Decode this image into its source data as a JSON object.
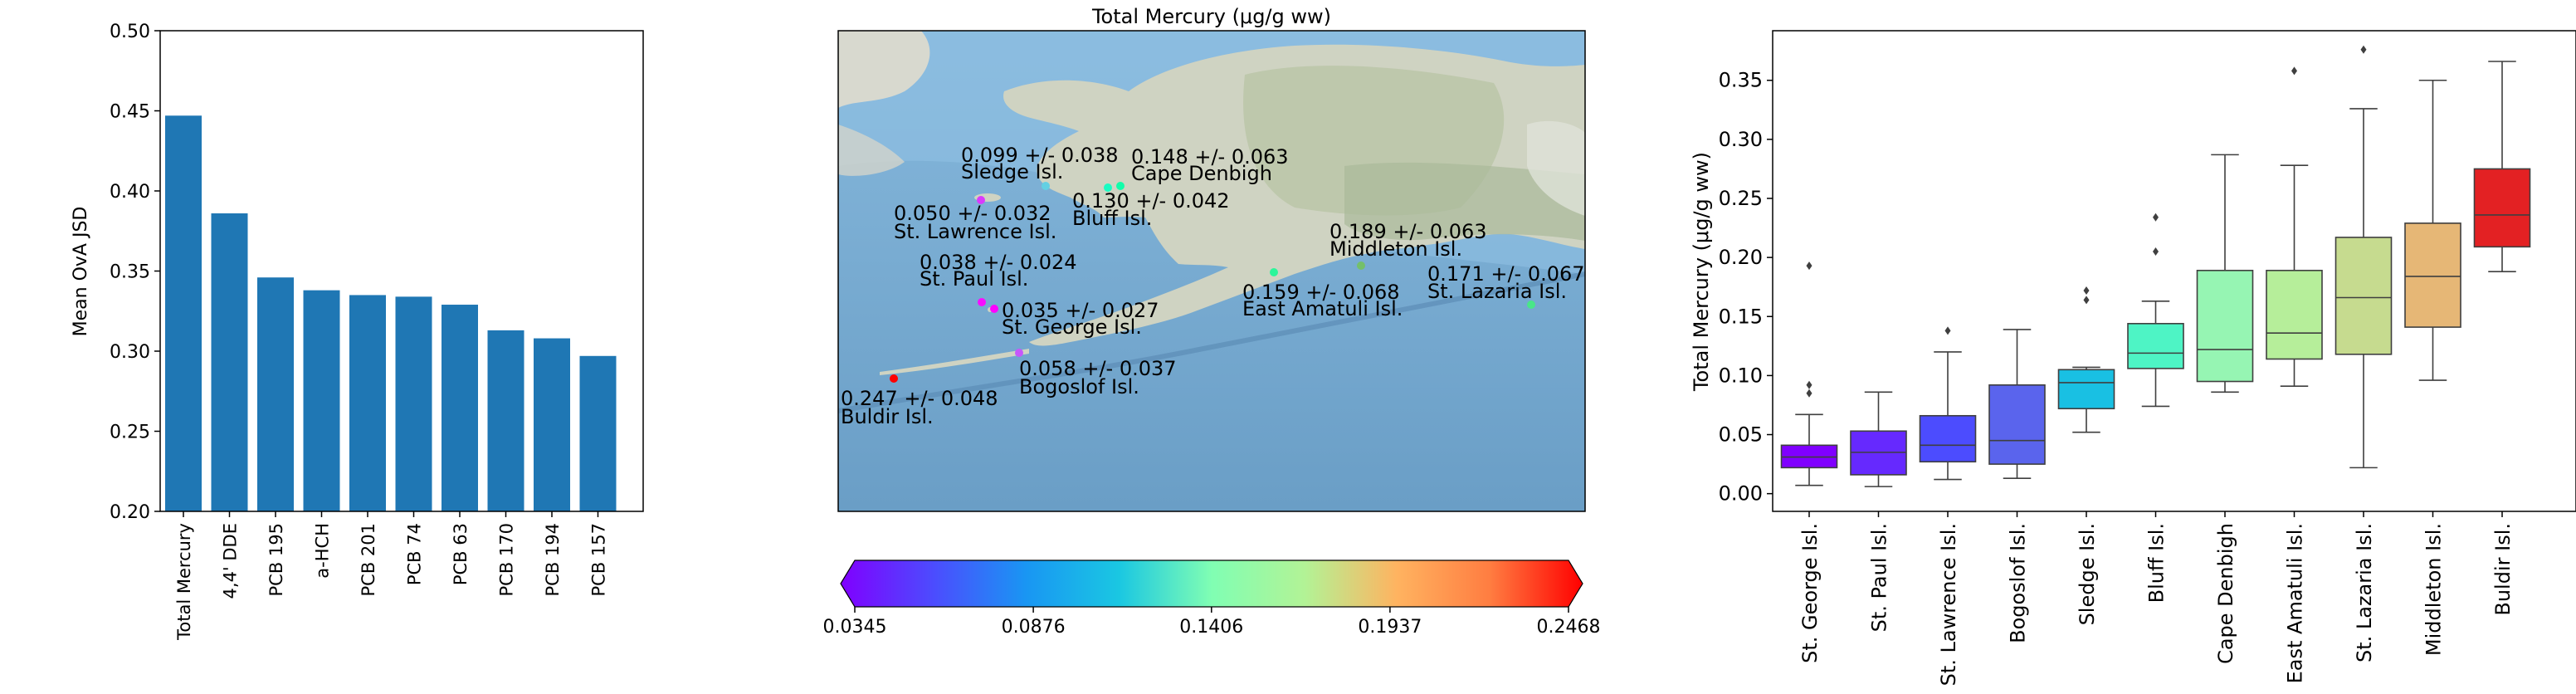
{
  "chart_data": [
    {
      "type": "bar",
      "ylabel": "Mean OvA JSD",
      "xlabel": "",
      "title": "",
      "categories": [
        "Total Mercury",
        "4,4' DDE",
        "PCB 195",
        "a-HCH",
        "PCB 201",
        "PCB 74",
        "PCB 63",
        "PCB 170",
        "PCB 194",
        "PCB 157"
      ],
      "values": [
        0.447,
        0.386,
        0.346,
        0.338,
        0.335,
        0.334,
        0.329,
        0.313,
        0.308,
        0.297
      ],
      "ylim": [
        0.2,
        0.5
      ],
      "yticks": [
        "0.20",
        "0.25",
        "0.30",
        "0.35",
        "0.40",
        "0.45",
        "0.50"
      ],
      "bar_color": "#1f77b4",
      "grid": false
    },
    {
      "type": "scatter",
      "title": "Total Mercury (μg/g ww)",
      "map": "Aleutian Islands / Bering Sea, Alaska",
      "points": [
        {
          "site": "Buldir Isl.",
          "label": "0.247 +/- 0.048",
          "value": 0.247
        },
        {
          "site": "Bogoslof Isl.",
          "label": "0.058 +/- 0.037",
          "value": 0.058
        },
        {
          "site": "St. George Isl.",
          "label": "0.035 +/- 0.027",
          "value": 0.035
        },
        {
          "site": "St. Paul Isl.",
          "label": "0.038 +/- 0.024",
          "value": 0.038
        },
        {
          "site": "St. Lawrence Isl.",
          "label": "0.050 +/- 0.032",
          "value": 0.05
        },
        {
          "site": "Sledge Isl.",
          "label": "0.099 +/- 0.038",
          "value": 0.099
        },
        {
          "site": "Bluff Isl.",
          "label": "0.130 +/- 0.042",
          "value": 0.13
        },
        {
          "site": "Cape Denbigh",
          "label": "0.148 +/- 0.063",
          "value": 0.148
        },
        {
          "site": "East Amatuli Isl.",
          "label": "0.159 +/- 0.068",
          "value": 0.159
        },
        {
          "site": "Middleton Isl.",
          "label": "0.189 +/- 0.063",
          "value": 0.189
        },
        {
          "site": "St. Lazaria Isl.",
          "label": "0.171 +/- 0.067",
          "value": 0.171
        }
      ],
      "colorbar": {
        "min": 0.0345,
        "max": 0.2468,
        "ticks": [
          "0.0345",
          "0.0876",
          "0.1406",
          "0.1937",
          "0.2468"
        ],
        "colormap": "rainbow"
      }
    },
    {
      "type": "box",
      "ylabel": "Total Mercury (μg/g ww)",
      "ylim": [
        -0.015,
        0.392
      ],
      "yticks": [
        "0.00",
        "0.05",
        "0.10",
        "0.15",
        "0.20",
        "0.25",
        "0.30",
        "0.35"
      ],
      "categories": [
        "St. George Isl.",
        "St. Paul Isl.",
        "St. Lawrence Isl.",
        "Bogoslof Isl.",
        "Sledge Isl.",
        "Bluff Isl.",
        "Cape Denbigh",
        "East Amatuli Isl.",
        "St. Lazaria Isl.",
        "Middleton Isl.",
        "Buldir Isl."
      ],
      "boxes": [
        {
          "whislo": 0.007,
          "q1": 0.022,
          "med": 0.031,
          "q3": 0.041,
          "whishi": 0.067,
          "fliers": [
            0.193,
            0.092,
            0.085
          ],
          "color": "#8000ff"
        },
        {
          "whislo": 0.006,
          "q1": 0.016,
          "med": 0.035,
          "q3": 0.053,
          "whishi": 0.086,
          "fliers": [],
          "color": "#6629fe"
        },
        {
          "whislo": 0.012,
          "q1": 0.027,
          "med": 0.041,
          "q3": 0.066,
          "whishi": 0.12,
          "fliers": [
            0.138
          ],
          "color": "#4c4cfe"
        },
        {
          "whislo": 0.013,
          "q1": 0.025,
          "med": 0.045,
          "q3": 0.092,
          "whishi": 0.139,
          "fliers": [],
          "color": "#5a64ed"
        },
        {
          "whislo": 0.052,
          "q1": 0.072,
          "med": 0.094,
          "q3": 0.105,
          "whishi": 0.107,
          "fliers": [
            0.172,
            0.164
          ],
          "color": "#19c0e3"
        },
        {
          "whislo": 0.074,
          "q1": 0.106,
          "med": 0.119,
          "q3": 0.144,
          "whishi": 0.163,
          "fliers": [
            0.234,
            0.205
          ],
          "color": "#4ef4c5"
        },
        {
          "whislo": 0.086,
          "q1": 0.095,
          "med": 0.122,
          "q3": 0.189,
          "whishi": 0.287,
          "fliers": [],
          "color": "#96f5b3"
        },
        {
          "whislo": 0.091,
          "q1": 0.114,
          "med": 0.136,
          "q3": 0.189,
          "whishi": 0.278,
          "fliers": [
            0.358
          ],
          "color": "#b6ee9a"
        },
        {
          "whislo": 0.022,
          "q1": 0.118,
          "med": 0.166,
          "q3": 0.217,
          "whishi": 0.326,
          "fliers": [
            0.376
          ],
          "color": "#c6db8f"
        },
        {
          "whislo": 0.096,
          "q1": 0.141,
          "med": 0.184,
          "q3": 0.229,
          "whishi": 0.35,
          "fliers": [],
          "color": "#e6b776"
        },
        {
          "whislo": 0.188,
          "q1": 0.209,
          "med": 0.236,
          "q3": 0.275,
          "whishi": 0.366,
          "fliers": [],
          "color": "#e32123"
        }
      ]
    }
  ]
}
